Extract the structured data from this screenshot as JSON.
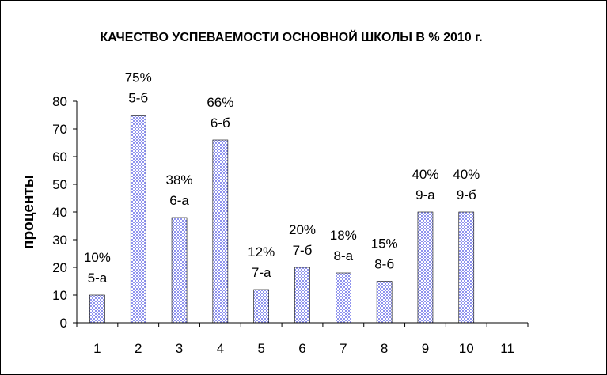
{
  "chart_data": {
    "type": "bar",
    "title": "КАЧЕСТВО УСПЕВАЕМОСТИ ОСНОВНОЙ ШКОЛЫ В % 2010 г.",
    "xlabel": "",
    "ylabel": "проценты",
    "categories": [
      "1",
      "2",
      "3",
      "4",
      "5",
      "6",
      "7",
      "8",
      "9",
      "10",
      "11"
    ],
    "values": [
      10,
      75,
      38,
      66,
      12,
      20,
      18,
      15,
      40,
      40,
      null
    ],
    "data_labels": [
      [
        "10%",
        "5-а"
      ],
      [
        "75%",
        "5-б"
      ],
      [
        "38%",
        "6-а"
      ],
      [
        "66%",
        "6-б"
      ],
      [
        "12%",
        "7-а"
      ],
      [
        "20%",
        "7-б"
      ],
      [
        "18%",
        "8-а"
      ],
      [
        "15%",
        "8-б"
      ],
      [
        "40%",
        "9-а"
      ],
      [
        "40%",
        "9-б"
      ],
      null
    ],
    "ylim": [
      0,
      80
    ],
    "yticks": [
      0,
      10,
      20,
      30,
      40,
      50,
      60,
      70,
      80
    ],
    "grid": false,
    "legend": "none",
    "bar_fill": "#9a9ef0",
    "bar_pattern": "dotted-check"
  }
}
